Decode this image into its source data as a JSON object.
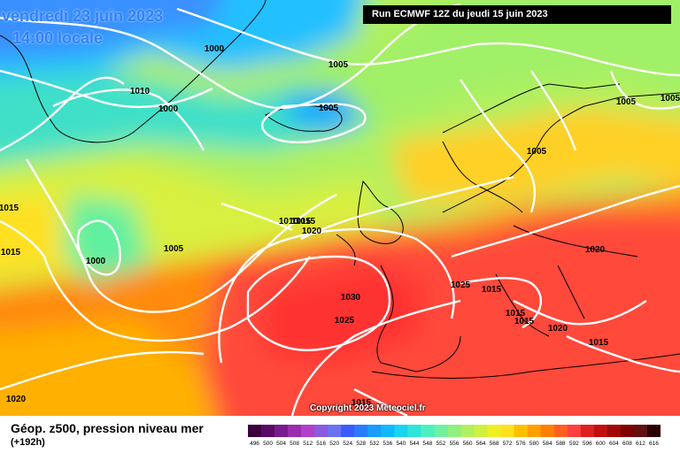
{
  "header": {
    "date": "vendredi 23 juin 2023",
    "time": "14:00 locale",
    "run": "Run ECMWF 12Z du jeudi 15 juin 2023"
  },
  "copyright": "Copyright 2023 Meteociel.fr",
  "legend": {
    "title": "Géop. z500, pression niveau mer",
    "subtitle": "(+192h)",
    "ticks": [
      "496",
      "500",
      "504",
      "508",
      "512",
      "516",
      "520",
      "524",
      "528",
      "532",
      "536",
      "540",
      "544",
      "548",
      "552",
      "556",
      "560",
      "564",
      "568",
      "572",
      "576",
      "580",
      "584",
      "588",
      "592",
      "596",
      "600",
      "604",
      "608",
      "612",
      "616"
    ],
    "colors": [
      "#3c0040",
      "#5a0a66",
      "#7a1a8c",
      "#9a2cb0",
      "#b040c8",
      "#8a5ae0",
      "#6a72f0",
      "#3a5cff",
      "#2a7cff",
      "#1a9cff",
      "#10b8ff",
      "#18d4f0",
      "#30e4d8",
      "#4cf0c0",
      "#70f0a0",
      "#90f080",
      "#b0f060",
      "#d0f040",
      "#f0f020",
      "#ffe020",
      "#ffc000",
      "#ffa000",
      "#ff8000",
      "#ff6020",
      "#ff4040",
      "#e02020",
      "#c01010",
      "#a00808",
      "#800000",
      "#601010",
      "#2a0000"
    ]
  },
  "isobar_labels": [
    {
      "text": "1000"
    },
    {
      "text": "1005"
    },
    {
      "text": "1010"
    },
    {
      "text": "1000"
    },
    {
      "text": "1005"
    },
    {
      "text": "1005"
    },
    {
      "text": "1005"
    },
    {
      "text": "1005"
    },
    {
      "text": "1015"
    },
    {
      "text": "1015"
    },
    {
      "text": "1015"
    },
    {
      "text": "1000"
    },
    {
      "text": "1005"
    },
    {
      "text": "1010"
    },
    {
      "text": "1015"
    },
    {
      "text": "1020"
    },
    {
      "text": "1020"
    },
    {
      "text": "1030"
    },
    {
      "text": "1025"
    },
    {
      "text": "1025"
    },
    {
      "text": "1015"
    },
    {
      "text": "1015"
    },
    {
      "text": "1015"
    },
    {
      "text": "1020"
    },
    {
      "text": "1015"
    },
    {
      "text": "1020"
    },
    {
      "text": "1015"
    }
  ]
}
